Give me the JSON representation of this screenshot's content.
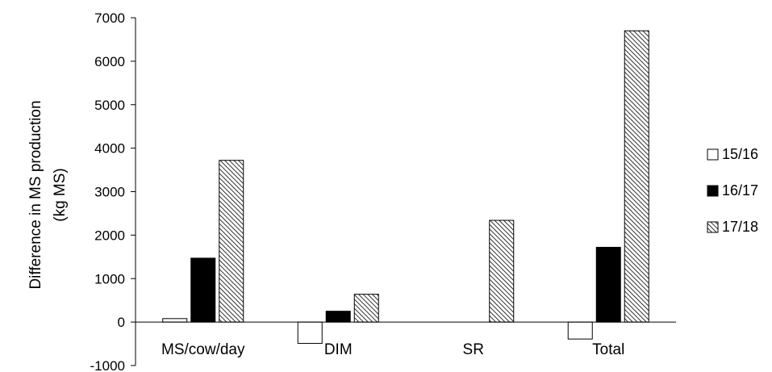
{
  "chart_data": {
    "type": "bar",
    "title": "",
    "xlabel": "",
    "ylabel": "Difference in MS production\n(kg MS)",
    "ylim": [
      -1000,
      7000
    ],
    "yticks": [
      -1000,
      0,
      1000,
      2000,
      3000,
      4000,
      5000,
      6000,
      7000
    ],
    "grid": false,
    "legend_position": "right",
    "categories": [
      "MS/cow/day",
      "DIM",
      "SR",
      "Total"
    ],
    "series": [
      {
        "name": "15/16",
        "values": [
          80,
          -490,
          0,
          -390
        ],
        "fill": "#ffffff"
      },
      {
        "name": "16/17",
        "values": [
          1470,
          250,
          0,
          1720
        ],
        "fill": "#000000"
      },
      {
        "name": "17/18",
        "values": [
          3720,
          640,
          2340,
          6700
        ],
        "fill": "hatch"
      }
    ]
  }
}
